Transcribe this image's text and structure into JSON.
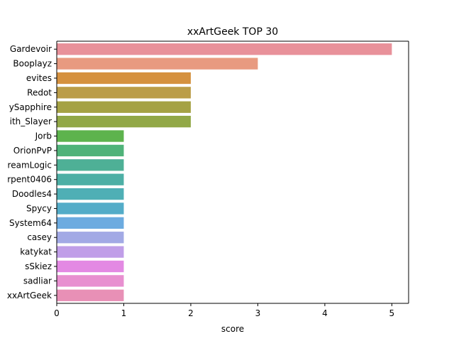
{
  "chart_data": {
    "type": "bar",
    "orientation": "horizontal",
    "title": "xxArtGeek TOP 30",
    "xlabel": "score",
    "ylabel": "",
    "xlim": [
      0,
      5.25
    ],
    "xticks": [
      0,
      1,
      2,
      3,
      4,
      5
    ],
    "grid": false,
    "categories": [
      "Gardevoir",
      "Booplayz",
      "evites",
      "Redot",
      "ySapphire",
      "ith_Slayer",
      "Jorb",
      "OrionPvP",
      "reamLogic",
      "rpent0406",
      "Doodles4",
      "Spycy",
      "System64",
      "casey",
      "katykat",
      "sSkiez",
      "sadliar",
      "xxArtGeek"
    ],
    "values": [
      5,
      3,
      2,
      2,
      2,
      2,
      1,
      1,
      1,
      1,
      1,
      1,
      1,
      1,
      1,
      1,
      1,
      1
    ],
    "colors": [
      "#e8919a",
      "#e89a80",
      "#d5913f",
      "#bb9d48",
      "#a5a244",
      "#92a847",
      "#5db34d",
      "#4fb379",
      "#4eb096",
      "#4dafa5",
      "#4fafb5",
      "#53acc8",
      "#6cabe0",
      "#a2a9e5",
      "#c09ee8",
      "#e389e3",
      "#e88fd0",
      "#e890b6"
    ]
  }
}
